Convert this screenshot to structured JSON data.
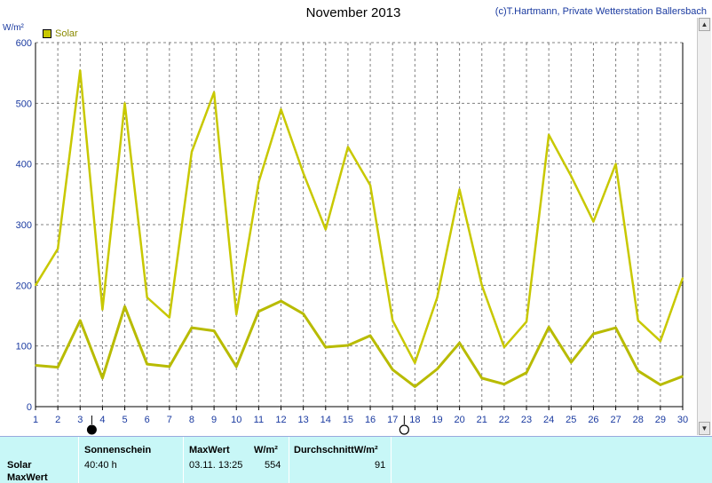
{
  "title": "November 2013",
  "credit": "(c)T.Hartmann, Private Wetterstation Ballersbach",
  "y_unit": "W/m²",
  "legend_label": "Solar",
  "chart_data": {
    "type": "line",
    "x": [
      1,
      2,
      3,
      4,
      5,
      6,
      7,
      8,
      9,
      10,
      11,
      12,
      13,
      14,
      15,
      16,
      17,
      18,
      19,
      20,
      21,
      22,
      23,
      24,
      25,
      26,
      27,
      28,
      29,
      30
    ],
    "ylim": [
      0,
      600
    ],
    "yticks": [
      0,
      100,
      200,
      300,
      400,
      500,
      600
    ],
    "grid": true,
    "series": [
      {
        "name": "Solar",
        "values": [
          200,
          260,
          554,
          160,
          500,
          180,
          147,
          420,
          518,
          152,
          370,
          490,
          385,
          292,
          428,
          365,
          142,
          72,
          180,
          358,
          200,
          98,
          140,
          448,
          380,
          305,
          400,
          142,
          108,
          212
        ]
      },
      {
        "values": [
          68,
          65,
          142,
          47,
          165,
          70,
          66,
          130,
          125,
          66,
          157,
          174,
          153,
          98,
          101,
          117,
          61,
          33,
          62,
          105,
          47,
          37,
          56,
          131,
          73,
          120,
          130,
          59,
          36,
          50
        ]
      }
    ],
    "colors": {
      "series0": "#c8c800",
      "series1": "#b8bb00",
      "grid": "#808080"
    }
  },
  "markers": [
    {
      "day": 4,
      "icon": "new-moon-icon"
    },
    {
      "day": 18,
      "icon": "full-moon-icon"
    }
  ],
  "panel": {
    "row_label_1": "Solar",
    "row_label_2": "MaxWert",
    "sunshine_header": "Sonnenschein",
    "sunshine_value": "40:40 h",
    "max_header": "MaxWert",
    "max_unit_header": "W/m²",
    "max_date": "03.11.  13:25",
    "max_value": "554",
    "avg_header": "DurchschnittW/m²",
    "avg_value": "91"
  }
}
